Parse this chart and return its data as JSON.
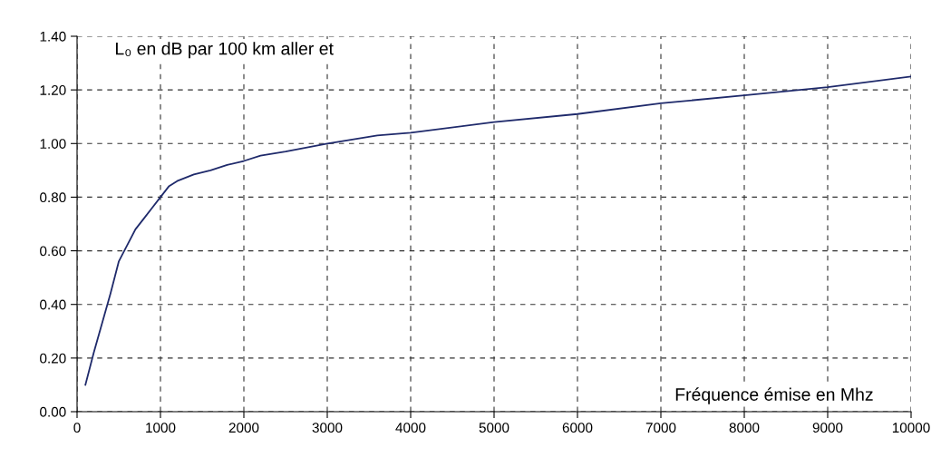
{
  "chart_data": {
    "type": "line",
    "title": "L₀ en dB par 100 km aller et",
    "xlabel": "Fréquence émise en Mhz",
    "x": [
      100,
      200,
      300,
      400,
      500,
      600,
      700,
      800,
      900,
      1000,
      1100,
      1200,
      1400,
      1600,
      1800,
      2000,
      2200,
      2500,
      3000,
      3600,
      4000,
      5000,
      6000,
      7000,
      8000,
      9000,
      10000
    ],
    "series": [
      {
        "color": "#1f2a6b",
        "values": [
          0.1,
          0.22,
          0.33,
          0.44,
          0.56,
          0.62,
          0.68,
          0.72,
          0.76,
          0.8,
          0.84,
          0.86,
          0.885,
          0.9,
          0.92,
          0.935,
          0.955,
          0.97,
          1.0,
          1.03,
          1.04,
          1.08,
          1.11,
          1.15,
          1.18,
          1.21,
          1.25
        ]
      }
    ],
    "xlim": [
      0,
      10000
    ],
    "xticks": [
      0,
      1000,
      2000,
      3000,
      4000,
      5000,
      6000,
      7000,
      8000,
      9000,
      10000
    ],
    "ylim": [
      0,
      1.4
    ],
    "yticks": [
      {
        "value": 0,
        "label": "0.00"
      },
      {
        "value": 0.2,
        "label": "0.20"
      },
      {
        "value": 0.4,
        "label": "0.40"
      },
      {
        "value": 0.6,
        "label": "0.60"
      },
      {
        "value": 0.8,
        "label": "0.80"
      },
      {
        "value": 1.0,
        "label": "1.00"
      },
      {
        "value": 1.2,
        "label": "1.20"
      },
      {
        "value": 1.4,
        "label": "1.40"
      }
    ],
    "grid": true,
    "marker": "none",
    "line_style": "solid",
    "legend": false
  }
}
